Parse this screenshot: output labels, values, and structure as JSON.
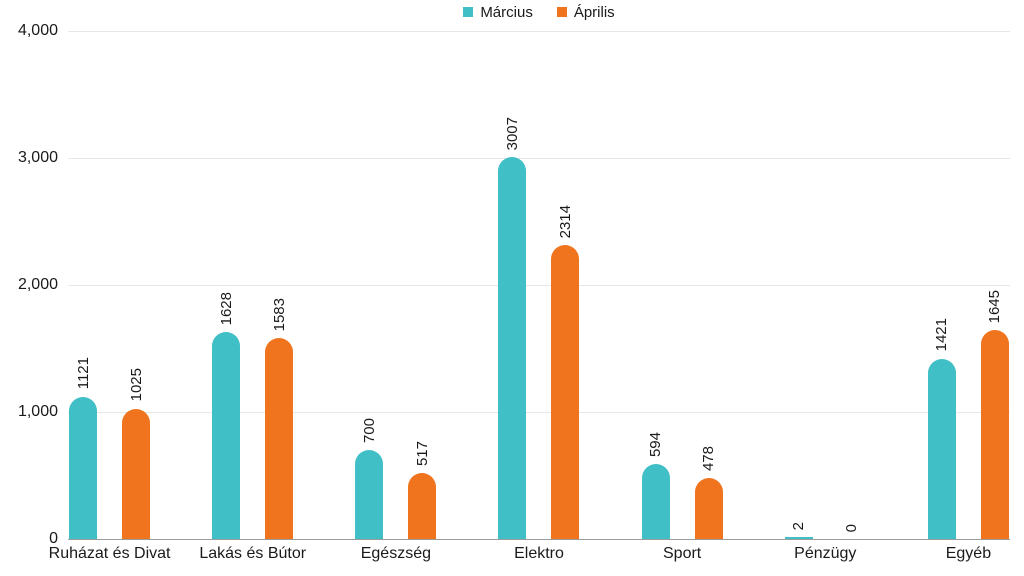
{
  "chart_data": {
    "type": "bar",
    "title": "",
    "categories": [
      "Ruházat és Divat",
      "Lakás és Bútor",
      "Egészség",
      "Elektro",
      "Sport",
      "Pénzügy",
      "Egyéb"
    ],
    "series": [
      {
        "name": "Március",
        "color": "#40BFC6",
        "values": [
          1121,
          1628,
          700,
          3007,
          594,
          2,
          1421
        ]
      },
      {
        "name": "Április",
        "color": "#F0731E",
        "values": [
          1025,
          1583,
          517,
          2314,
          478,
          0,
          1645
        ]
      }
    ],
    "ylim": [
      0,
      4000
    ],
    "yticks": [
      {
        "value": 4000,
        "label": "4,000"
      },
      {
        "value": 3000,
        "label": "3,000"
      },
      {
        "value": 2000,
        "label": "2,000"
      },
      {
        "value": 1000,
        "label": "1,000"
      },
      {
        "value": 0,
        "label": "0"
      }
    ],
    "grid": true,
    "legend_position": "top-center",
    "value_labels_rotated": true,
    "colors": {
      "gridline": "#e7e7e7",
      "baseline": "#9c9c9c",
      "text": "#1a1a1a",
      "background": "#ffffff"
    }
  }
}
